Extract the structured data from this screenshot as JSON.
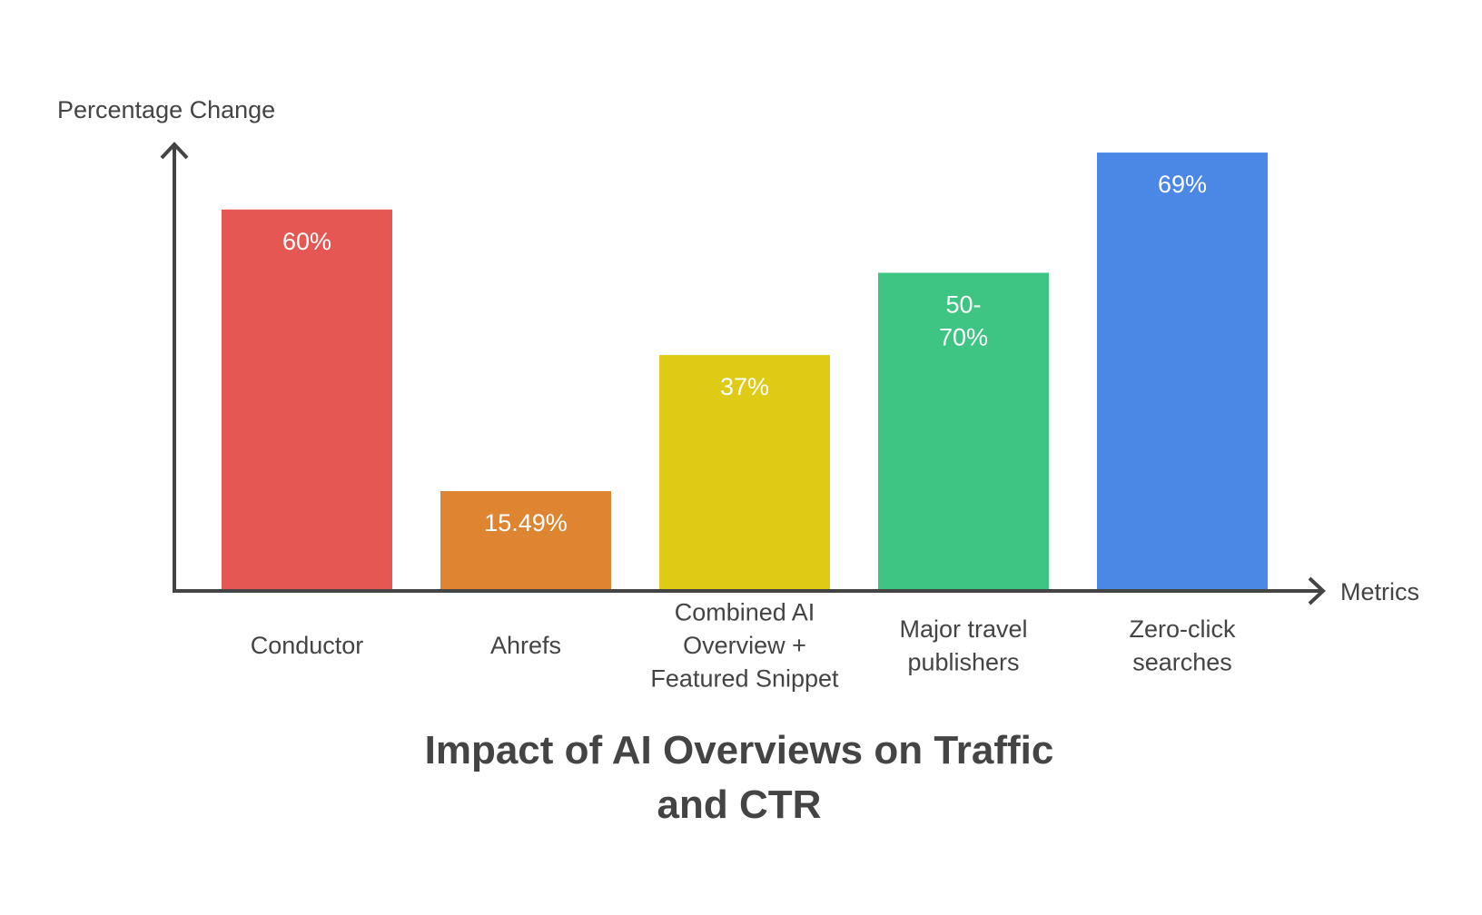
{
  "chart_data": {
    "type": "bar",
    "title_lines": [
      "Impact of AI Overviews on Traffic",
      "and CTR"
    ],
    "xlabel": "Metrics",
    "ylabel": "Percentage Change",
    "ylim": [
      0,
      71
    ],
    "grid": false,
    "categories": [
      [
        "Conductor"
      ],
      [
        "Ahrefs"
      ],
      [
        "Combined AI",
        "Overview +",
        "Featured Snippet"
      ],
      [
        "Major travel",
        "publishers"
      ],
      [
        "Zero-click",
        "searches"
      ]
    ],
    "values": [
      60,
      15.49,
      37,
      50,
      69
    ],
    "data_labels": [
      [
        "60%"
      ],
      [
        "15.49%"
      ],
      [
        "37%"
      ],
      [
        "50-",
        "70%"
      ],
      [
        "69%"
      ]
    ],
    "colors": [
      "#E55753",
      "#DF8431",
      "#DFCB16",
      "#3EC583",
      "#4B88E5"
    ]
  }
}
